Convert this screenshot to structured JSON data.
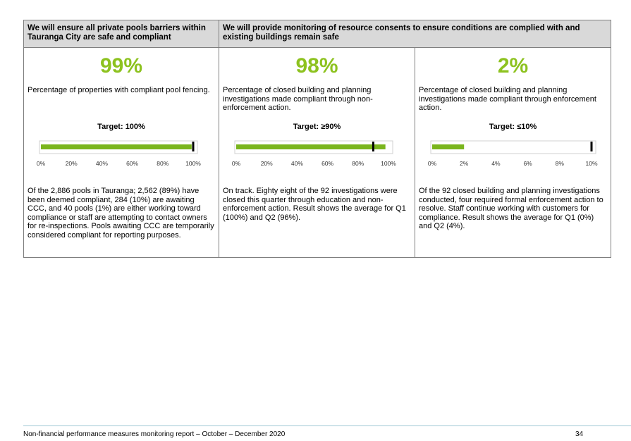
{
  "headers": [
    "We will ensure all private pools barriers within Tauranga City are safe and compliant",
    "We will provide monitoring of resource consents to ensure conditions are complied with and existing buildings remain safe"
  ],
  "columns": [
    {
      "percent": "99%",
      "description": "Percentage of properties with compliant pool fencing.",
      "target": "Target: 100%",
      "chart": {
        "type": "bullet",
        "value": 99,
        "target": 100,
        "max": 100,
        "ticks": [
          "0%",
          "20%",
          "40%",
          "60%",
          "80%",
          "100%"
        ],
        "bar_color": "#7ab51d"
      },
      "body": "Of the 2,886 pools in Tauranga; 2,562 (89%) have been deemed compliant, 284 (10%) are awaiting CCC, and 40 pools (1%) are either working toward compliance or staff are attempting to contact owners for re-inspections. Pools awaiting CCC are temporarily considered compliant for reporting purposes."
    },
    {
      "percent": "98%",
      "description": "Percentage of closed building and planning investigations made compliant through non-enforcement action.",
      "target": "Target: ≥90%",
      "chart": {
        "type": "bullet",
        "value": 98,
        "target": 90,
        "max": 100,
        "ticks": [
          "0%",
          "20%",
          "40%",
          "60%",
          "80%",
          "100%"
        ],
        "bar_color": "#7ab51d"
      },
      "body": "On track. Eighty eight of the 92 investigations were closed this quarter through education and non-enforcement action. Result shows the average for Q1 (100%) and Q2 (96%)."
    },
    {
      "percent": "2%",
      "description": "Percentage of closed building and planning investigations made compliant through enforcement action.",
      "target": "Target: ≤10%",
      "chart": {
        "type": "bullet",
        "value": 2,
        "target": 10,
        "max": 10,
        "ticks": [
          "0%",
          "2%",
          "4%",
          "6%",
          "8%",
          "10%"
        ],
        "bar_color": "#7ab51d"
      },
      "body": "Of the 92 closed building and planning investigations conducted, four required formal enforcement action to resolve.  Staff continue working with customers for compliance. Result shows the average for Q1 (0%) and Q2 (4%)."
    }
  ],
  "chart_data": [
    {
      "type": "bar",
      "categories": [
        ""
      ],
      "values": [
        99
      ],
      "target": 100,
      "ylim": [
        0,
        100
      ]
    },
    {
      "type": "bar",
      "categories": [
        ""
      ],
      "values": [
        98
      ],
      "target": 90,
      "ylim": [
        0,
        100
      ]
    },
    {
      "type": "bar",
      "categories": [
        ""
      ],
      "values": [
        2
      ],
      "target": 10,
      "ylim": [
        0,
        10
      ]
    }
  ],
  "footer": {
    "text": "Non-financial performance measures monitoring report – October – December 2020",
    "page": "34"
  },
  "colors": {
    "percent": "#8dc21f",
    "header_bg": "#d9d9d9",
    "bar": "#7ab51d",
    "target_marker": "#000000"
  }
}
